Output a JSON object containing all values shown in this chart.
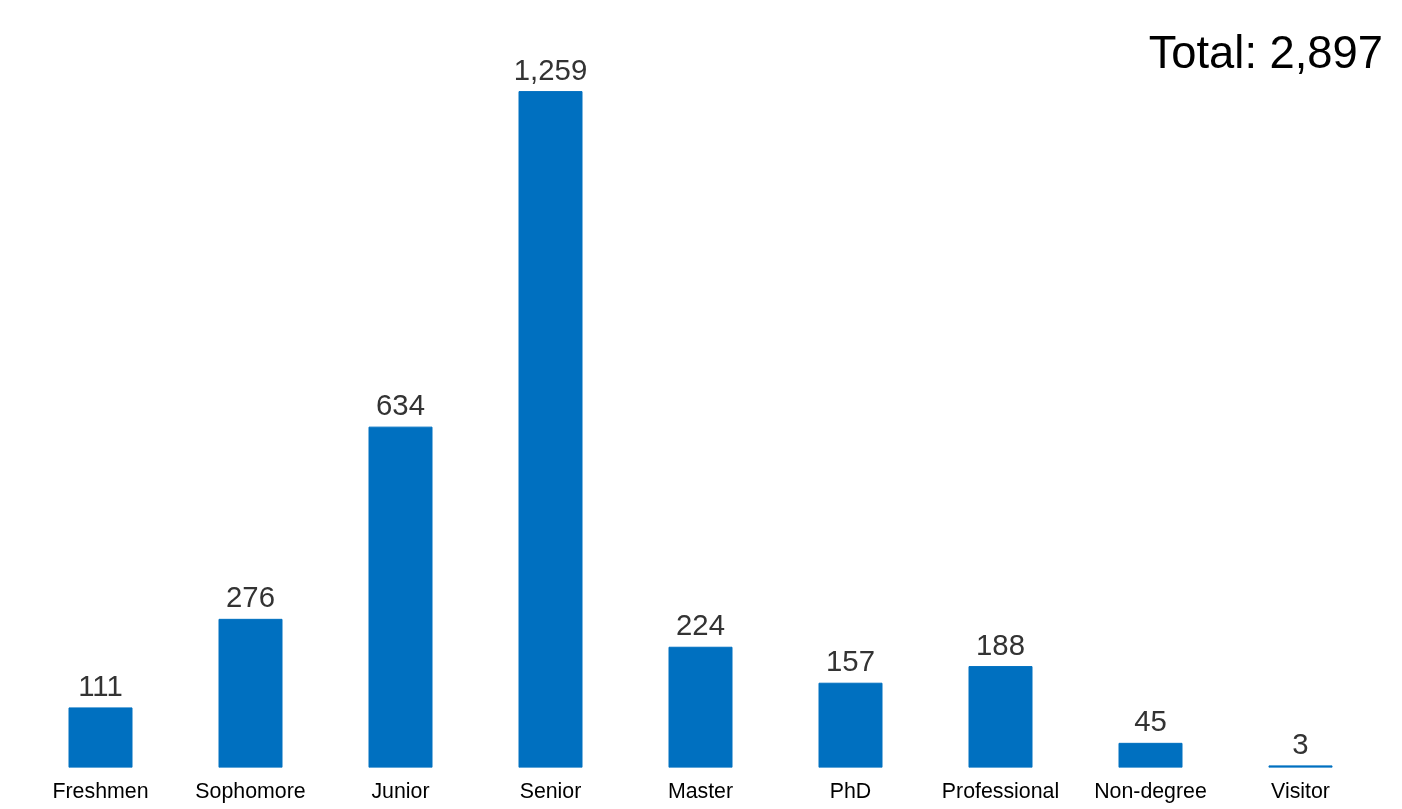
{
  "chart_data": {
    "type": "bar",
    "categories": [
      "Freshmen",
      "Sophomore",
      "Junior",
      "Senior",
      "Master",
      "PhD",
      "Professional",
      "Non-degree",
      "Visitor"
    ],
    "values": [
      111,
      276,
      634,
      1259,
      224,
      157,
      188,
      45,
      3
    ],
    "color": "#0070c0",
    "value_labels": [
      "111",
      "276",
      "634",
      "1,259",
      "224",
      "157",
      "188",
      "45",
      "3"
    ],
    "tick_labels": "x",
    "grid": false,
    "annotations": [
      "Total: 2,897"
    ]
  }
}
